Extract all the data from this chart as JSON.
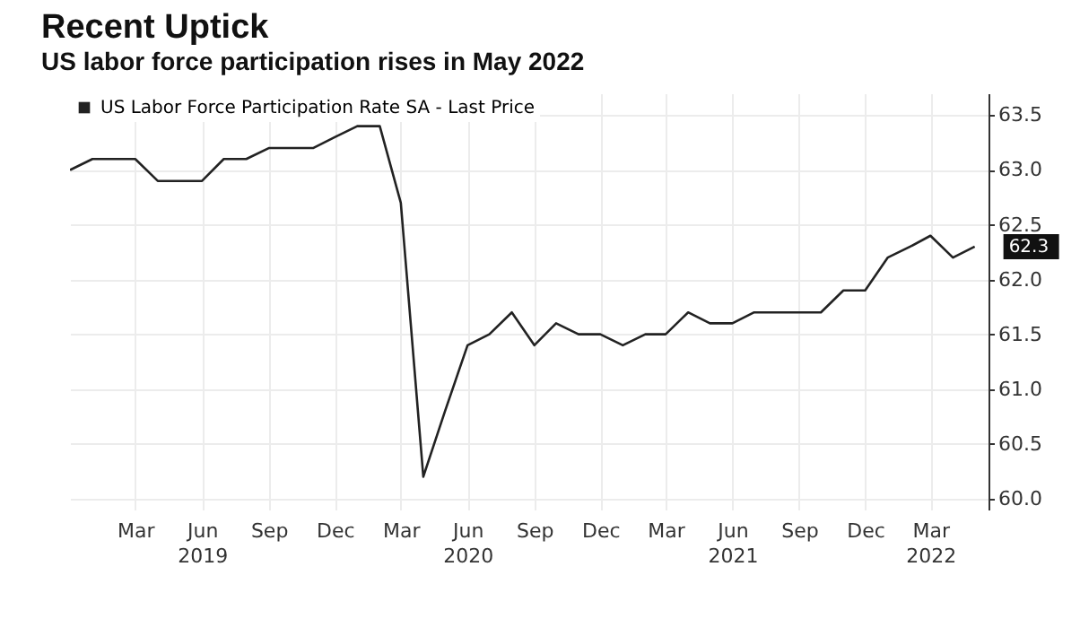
{
  "chart_data": {
    "type": "line",
    "title": "Recent Uptick",
    "subtitle": "US labor force participation rises in May 2022",
    "x": [
      "2018-12",
      "2019-01",
      "2019-02",
      "2019-03",
      "2019-04",
      "2019-05",
      "2019-06",
      "2019-07",
      "2019-08",
      "2019-09",
      "2019-10",
      "2019-11",
      "2019-12",
      "2020-01",
      "2020-02",
      "2020-03",
      "2020-04",
      "2020-05",
      "2020-06",
      "2020-07",
      "2020-08",
      "2020-09",
      "2020-10",
      "2020-11",
      "2020-12",
      "2021-01",
      "2021-02",
      "2021-03",
      "2021-04",
      "2021-05",
      "2021-06",
      "2021-07",
      "2021-08",
      "2021-09",
      "2021-10",
      "2021-11",
      "2021-12",
      "2022-01",
      "2022-02",
      "2022-03",
      "2022-04",
      "2022-05"
    ],
    "series": [
      {
        "name": "US Labor Force Participation Rate SA - Last Price",
        "color": "#222222",
        "values": [
          63.0,
          63.1,
          63.1,
          63.1,
          62.9,
          62.9,
          62.9,
          63.1,
          63.1,
          63.2,
          63.2,
          63.2,
          63.3,
          63.4,
          63.4,
          62.7,
          60.2,
          60.8,
          61.4,
          61.5,
          61.7,
          61.4,
          61.6,
          61.5,
          61.5,
          61.4,
          61.5,
          61.5,
          61.7,
          61.6,
          61.6,
          61.7,
          61.7,
          61.7,
          61.7,
          61.9,
          61.9,
          62.2,
          62.3,
          62.4,
          62.2,
          62.3
        ]
      }
    ],
    "xlim": [
      "2018-12-01",
      "2022-05-20"
    ],
    "xticks": [
      {
        "value": "2019-03",
        "label": "Mar"
      },
      {
        "value": "2019-06",
        "label": "Jun 2019"
      },
      {
        "value": "2019-09",
        "label": "Sep"
      },
      {
        "value": "2019-12",
        "label": "Dec"
      },
      {
        "value": "2020-03",
        "label": "Mar"
      },
      {
        "value": "2020-06",
        "label": "Jun 2020"
      },
      {
        "value": "2020-09",
        "label": "Sep"
      },
      {
        "value": "2020-12",
        "label": "Dec"
      },
      {
        "value": "2021-03",
        "label": "Mar"
      },
      {
        "value": "2021-06",
        "label": "Jun 2021"
      },
      {
        "value": "2021-09",
        "label": "Sep"
      },
      {
        "value": "2021-12",
        "label": "Dec"
      },
      {
        "value": "2022-03",
        "label": "Mar 2022"
      }
    ],
    "ylim": [
      59.9,
      63.7
    ],
    "yticks": [
      {
        "value": 60,
        "label": "60.0"
      },
      {
        "value": 60.5,
        "label": "60.5"
      },
      {
        "value": 61,
        "label": "61.0"
      },
      {
        "value": 61.5,
        "label": "61.5"
      },
      {
        "value": 62,
        "label": "62.0"
      },
      {
        "value": 62.5,
        "label": "62.5"
      },
      {
        "value": 63,
        "label": "63.0"
      },
      {
        "value": 63.5,
        "label": "63.5"
      }
    ],
    "annotations": [
      {
        "text": "62.3",
        "x": "2022-05",
        "y": 62.3
      }
    ],
    "grid": true,
    "legend": "top left",
    "marker": "none",
    "line_style": "solid"
  }
}
